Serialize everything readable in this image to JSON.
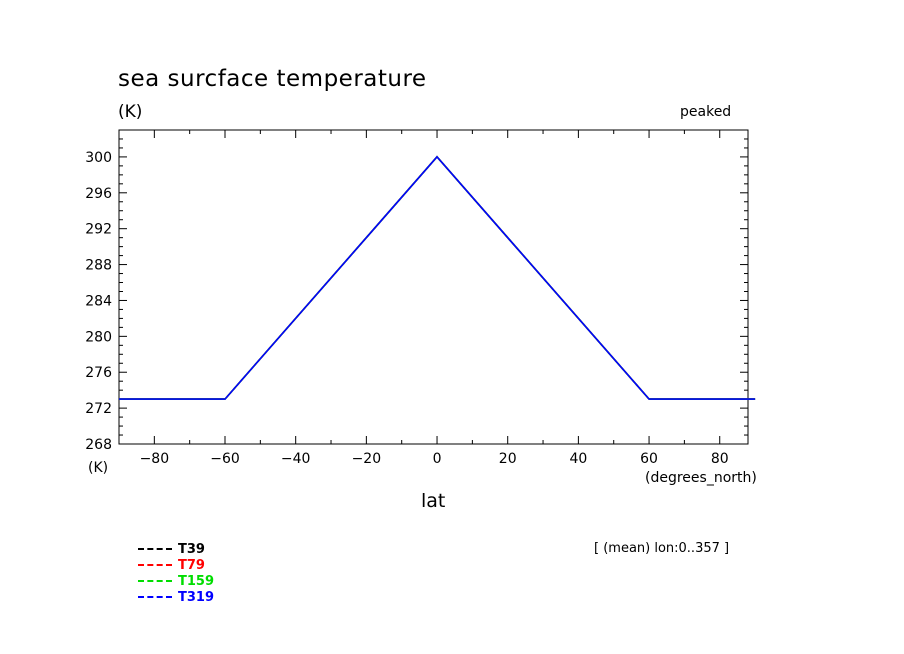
{
  "chart_data": {
    "type": "line",
    "title": "sea surcface temperature",
    "subtitle": "peaked",
    "ylabel": "(K)",
    "y_unit_bottom": "(K)",
    "xlabel": "lat",
    "xunit": "(degrees_north)",
    "annotation": "[ (mean) lon:0..357 ]",
    "xlim": [
      -90,
      88
    ],
    "ylim": [
      268,
      303
    ],
    "xticks": [
      -80,
      -60,
      -40,
      -20,
      0,
      20,
      40,
      60,
      80
    ],
    "yticks": [
      268,
      272,
      276,
      280,
      284,
      288,
      292,
      296,
      300
    ],
    "series": [
      {
        "name": "T39",
        "color": "#000000",
        "x": [
          -90,
          -60,
          0,
          60,
          90
        ],
        "y": [
          273,
          273,
          300,
          273,
          273
        ]
      },
      {
        "name": "T79",
        "color": "#ff0000",
        "x": [
          -90,
          -60,
          0,
          60,
          90
        ],
        "y": [
          273,
          273,
          300,
          273,
          273
        ]
      },
      {
        "name": "T159",
        "color": "#00ff00",
        "x": [
          -90,
          -60,
          0,
          60,
          90
        ],
        "y": [
          273,
          273,
          300,
          273,
          273
        ]
      },
      {
        "name": "T319",
        "color": "#0000ff",
        "x": [
          -90,
          -60,
          0,
          60,
          90
        ],
        "y": [
          273,
          273,
          300,
          273,
          273
        ]
      }
    ]
  }
}
